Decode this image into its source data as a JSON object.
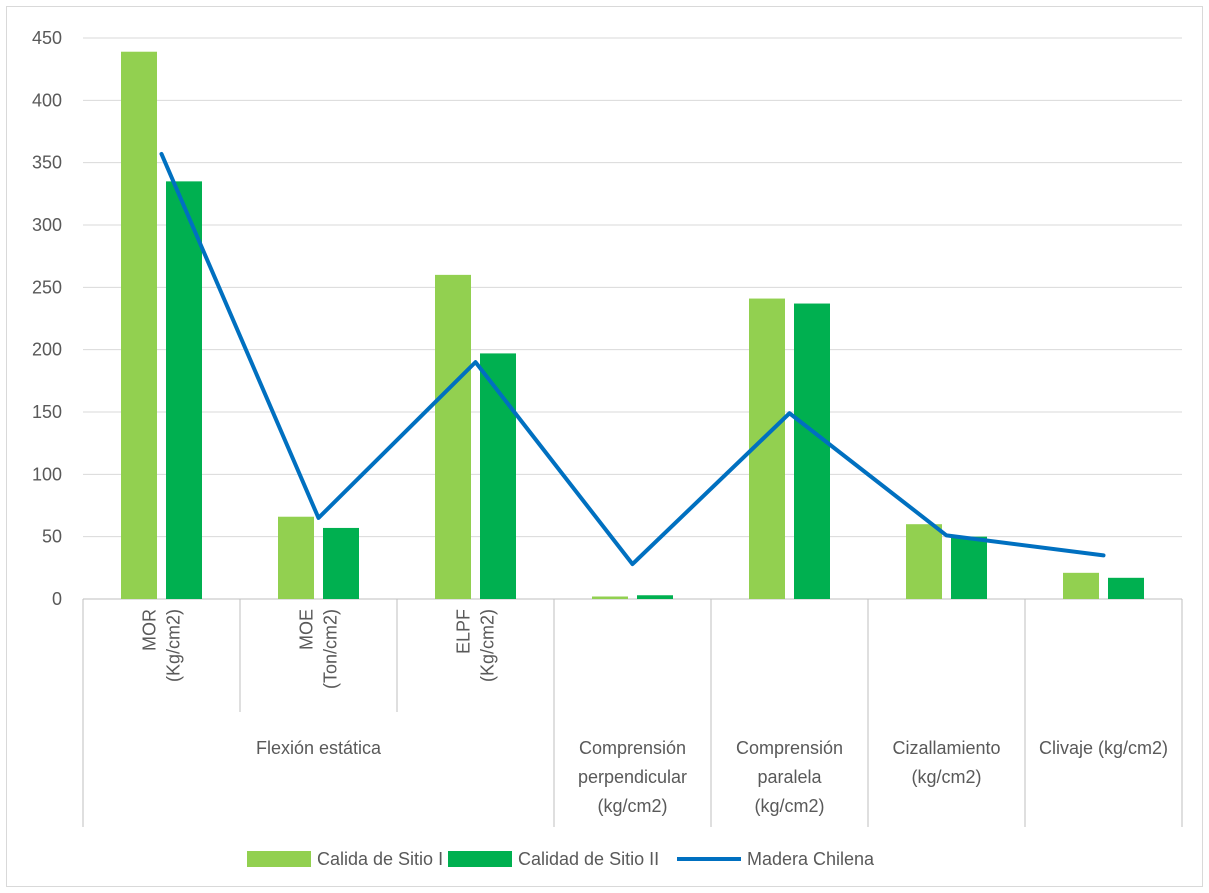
{
  "chart_data": {
    "type": "bar",
    "title": "",
    "xlabel": "",
    "ylabel": "",
    "ylim": [
      0,
      450
    ],
    "yticks": [
      0,
      50,
      100,
      150,
      200,
      250,
      300,
      350,
      400,
      450
    ],
    "grid": true,
    "legend_position": "bottom",
    "categories": [
      [
        "MOR",
        "(Kg/cm2)"
      ],
      [
        "MOE",
        "(Ton/cm2)"
      ],
      [
        "ELPF",
        "(Kg/cm2)"
      ],
      [
        "Comprensión",
        "perpendicular",
        "(kg/cm2)"
      ],
      [
        "Comprensión",
        "paralela",
        "(kg/cm2)"
      ],
      [
        "Cizallamiento",
        "(kg/cm2)"
      ],
      [
        "Clivaje (kg/cm2)"
      ]
    ],
    "group_labels": [
      {
        "label": "Flexión estática",
        "span": [
          0,
          2
        ]
      }
    ],
    "series": [
      {
        "name": "Calida de Sitio I",
        "type": "bar",
        "color": "#92d050",
        "values": [
          439,
          66,
          260,
          2,
          241,
          60,
          21
        ]
      },
      {
        "name": "Calidad de Sitio II",
        "type": "bar",
        "color": "#00b050",
        "values": [
          335,
          57,
          197,
          3,
          237,
          50,
          17
        ]
      },
      {
        "name": "Madera Chilena",
        "type": "line",
        "color": "#0070c0",
        "values": [
          357,
          65,
          190,
          28,
          149,
          51,
          35
        ]
      }
    ]
  }
}
